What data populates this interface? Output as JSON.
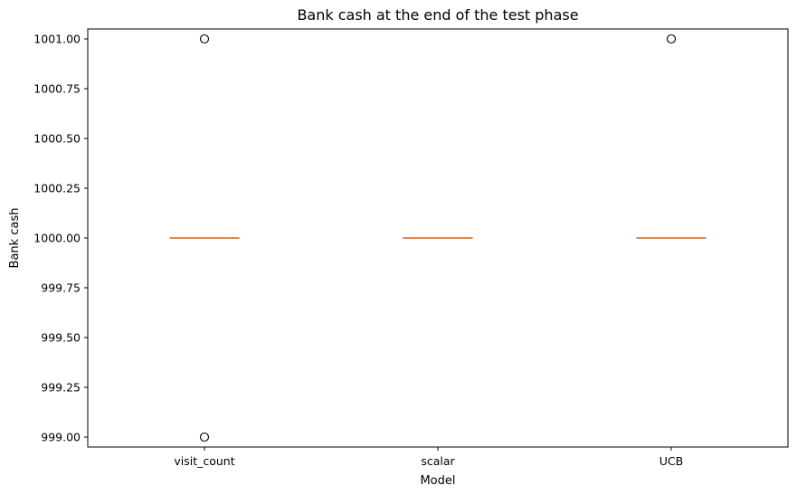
{
  "chart_data": {
    "type": "box",
    "title": "Bank cash at the end of the test phase",
    "xlabel": "Model",
    "ylabel": "Bank cash",
    "ylim": [
      998.95,
      1001.05
    ],
    "yticks": [
      999.0,
      999.25,
      999.5,
      999.75,
      1000.0,
      1000.25,
      1000.5,
      1000.75,
      1001.0
    ],
    "ytick_labels": [
      "999.00",
      "999.25",
      "999.50",
      "999.75",
      "1000.00",
      "1000.25",
      "1000.50",
      "1000.75",
      "1001.00"
    ],
    "categories": [
      "visit_count",
      "scalar",
      "UCB"
    ],
    "boxes": [
      {
        "category": "visit_count",
        "min": 1000.0,
        "q1": 1000.0,
        "median": 1000.0,
        "q3": 1000.0,
        "max": 1000.0,
        "outliers": [
          1001.0,
          999.0
        ]
      },
      {
        "category": "scalar",
        "min": 1000.0,
        "q1": 1000.0,
        "median": 1000.0,
        "q3": 1000.0,
        "max": 1000.0,
        "outliers": []
      },
      {
        "category": "UCB",
        "min": 1000.0,
        "q1": 1000.0,
        "median": 1000.0,
        "q3": 1000.0,
        "max": 1000.0,
        "outliers": [
          1001.0
        ]
      }
    ],
    "grid": false,
    "colors": {
      "median": "#e1884b",
      "box": "#000000",
      "outlier": "#000000"
    }
  }
}
